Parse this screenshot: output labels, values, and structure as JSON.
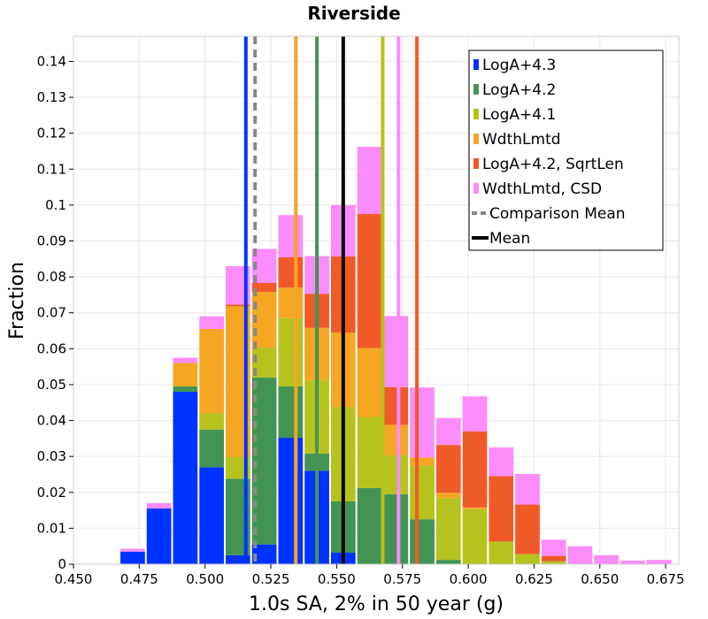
{
  "chart_data": {
    "type": "bar",
    "stacked": true,
    "title": "Riverside",
    "xlabel": "1.0s SA, 2% in 50 year (g)",
    "ylabel": "Fraction",
    "xlim": [
      0.45,
      0.68
    ],
    "ylim": [
      0,
      0.147
    ],
    "grid": true,
    "legend_position": "top-right",
    "x_ticks": [
      0.45,
      0.475,
      0.5,
      0.525,
      0.55,
      0.575,
      0.6,
      0.625,
      0.65,
      0.675
    ],
    "x_tick_labels": [
      "0.450",
      "0.475",
      "0.500",
      "0.525",
      "0.550",
      "0.575",
      "0.600",
      "0.625",
      "0.650",
      "0.675"
    ],
    "y_ticks": [
      0,
      0.01,
      0.02,
      0.03,
      0.04,
      0.05,
      0.06,
      0.07,
      0.08,
      0.09,
      0.1,
      0.11,
      0.12,
      0.13,
      0.14
    ],
    "y_tick_labels": [
      "0",
      "0.01",
      "0.02",
      "0.03",
      "0.04",
      "0.05",
      "0.06",
      "0.07",
      "0.08",
      "0.09",
      "0.1",
      "0.11",
      "0.12",
      "0.13",
      "0.14"
    ],
    "bin_width": 0.01,
    "bin_centers": [
      0.4725,
      0.4825,
      0.4925,
      0.5025,
      0.5125,
      0.5225,
      0.5325,
      0.5425,
      0.5525,
      0.5625,
      0.5725,
      0.5825,
      0.5925,
      0.6025,
      0.6125,
      0.6225,
      0.6325,
      0.6425,
      0.6525,
      0.6625,
      0.6725
    ],
    "series": [
      {
        "name": "LogA+4.3",
        "color": "#0033ff",
        "values": [
          0.0035,
          0.0155,
          0.048,
          0.027,
          0.0025,
          0.0055,
          0.0352,
          0.026,
          0.0032,
          0,
          0,
          0,
          0,
          0,
          0,
          0,
          0,
          0,
          0,
          0,
          0
        ]
      },
      {
        "name": "LogA+4.2",
        "color": "#439452",
        "values": [
          0,
          0,
          0.0015,
          0.0105,
          0.0213,
          0.0465,
          0.0143,
          0.0048,
          0.0143,
          0.0212,
          0.0195,
          0.0125,
          0.0012,
          0,
          0,
          0,
          0,
          0,
          0,
          0,
          0
        ]
      },
      {
        "name": "LogA+4.1",
        "color": "#b6c21e",
        "values": [
          0,
          0,
          0,
          0.0045,
          0.006,
          0.0083,
          0.019,
          0.0205,
          0.0262,
          0.0198,
          0.0108,
          0.015,
          0.0172,
          0.0153,
          0.0063,
          0.0028,
          0.0008,
          0,
          0,
          0,
          0
        ]
      },
      {
        "name": "WdthLmtd",
        "color": "#f5a623",
        "values": [
          0,
          0,
          0.0065,
          0.0235,
          0.042,
          0.0155,
          0.0085,
          0.0145,
          0.0208,
          0.0192,
          0.0085,
          0.0022,
          0.0015,
          0.0005,
          0,
          0,
          0,
          0,
          0,
          0,
          0
        ]
      },
      {
        "name": "LogA+4.2, SqrtLen",
        "color": "#f05a28",
        "values": [
          0,
          0,
          0,
          0,
          0.0005,
          0.0025,
          0.0085,
          0.0095,
          0.0212,
          0.0373,
          0.0105,
          0,
          0.0133,
          0.0212,
          0.0182,
          0.0138,
          0.0015,
          0,
          0,
          0,
          0
        ]
      },
      {
        "name": "WdthLmtd, CSD",
        "color": "#fb8cf9",
        "values": [
          0.0008,
          0.0015,
          0.0015,
          0.0035,
          0.0107,
          0.0095,
          0.0117,
          0.0105,
          0.0143,
          0.0187,
          0.0198,
          0.0195,
          0.0075,
          0.0097,
          0.008,
          0.0085,
          0.0045,
          0.005,
          0.0025,
          0.001,
          0.0012
        ]
      }
    ],
    "vertical_lines": [
      {
        "name": "LogA+4.3",
        "x": 0.5155,
        "color": "#0033ff",
        "style": "solid"
      },
      {
        "name": "WdthLmtd",
        "x": 0.5345,
        "color": "#f5a623",
        "style": "solid"
      },
      {
        "name": "LogA+4.2",
        "x": 0.5425,
        "color": "#439452",
        "style": "solid"
      },
      {
        "name": "LogA+4.1",
        "x": 0.5675,
        "color": "#b6c21e",
        "style": "solid"
      },
      {
        "name": "WdthLmtd, CSD",
        "x": 0.5735,
        "color": "#fb8cf9",
        "style": "solid"
      },
      {
        "name": "LogA+4.2, SqrtLen",
        "x": 0.5805,
        "color": "#f05a28",
        "style": "solid"
      },
      {
        "name": "Comparison Mean",
        "x": 0.519,
        "color": "#888888",
        "style": "dashed"
      },
      {
        "name": "Mean",
        "x": 0.5525,
        "color": "#000000",
        "style": "solid"
      }
    ],
    "legend": [
      {
        "label": "LogA+4.3",
        "color": "#0033ff",
        "marker": "square"
      },
      {
        "label": "LogA+4.2",
        "color": "#439452",
        "marker": "square"
      },
      {
        "label": "LogA+4.1",
        "color": "#b6c21e",
        "marker": "square"
      },
      {
        "label": "WdthLmtd",
        "color": "#f5a623",
        "marker": "square"
      },
      {
        "label": "LogA+4.2, SqrtLen",
        "color": "#f05a28",
        "marker": "square"
      },
      {
        "label": "WdthLmtd, CSD",
        "color": "#fb8cf9",
        "marker": "square"
      },
      {
        "label": "Comparison Mean",
        "color": "#888888",
        "marker": "dashed-line"
      },
      {
        "label": "Mean",
        "color": "#000000",
        "marker": "line"
      }
    ]
  }
}
